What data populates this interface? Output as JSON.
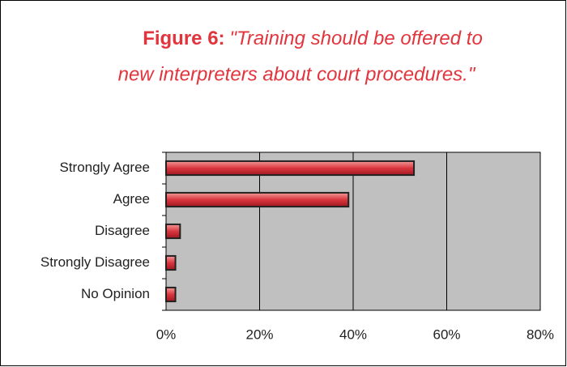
{
  "chart_data": {
    "type": "bar",
    "orientation": "horizontal",
    "figure_label": "Figure 6:",
    "title": [
      "\"Training should be offered to",
      "new interpreters about court procedures.\""
    ],
    "categories": [
      "Strongly Agree",
      "Agree",
      "Disagree",
      "Strongly Disagree",
      "No Opinion"
    ],
    "values": [
      53,
      39,
      3,
      2,
      2
    ],
    "color": "#d9363e",
    "xlim": [
      0,
      80
    ],
    "xticks": [
      {
        "value": 0,
        "label": "0%"
      },
      {
        "value": 20,
        "label": "20%"
      },
      {
        "value": 40,
        "label": "40%"
      },
      {
        "value": 60,
        "label": "60%"
      },
      {
        "value": 80,
        "label": "80%"
      }
    ],
    "grid": true
  }
}
